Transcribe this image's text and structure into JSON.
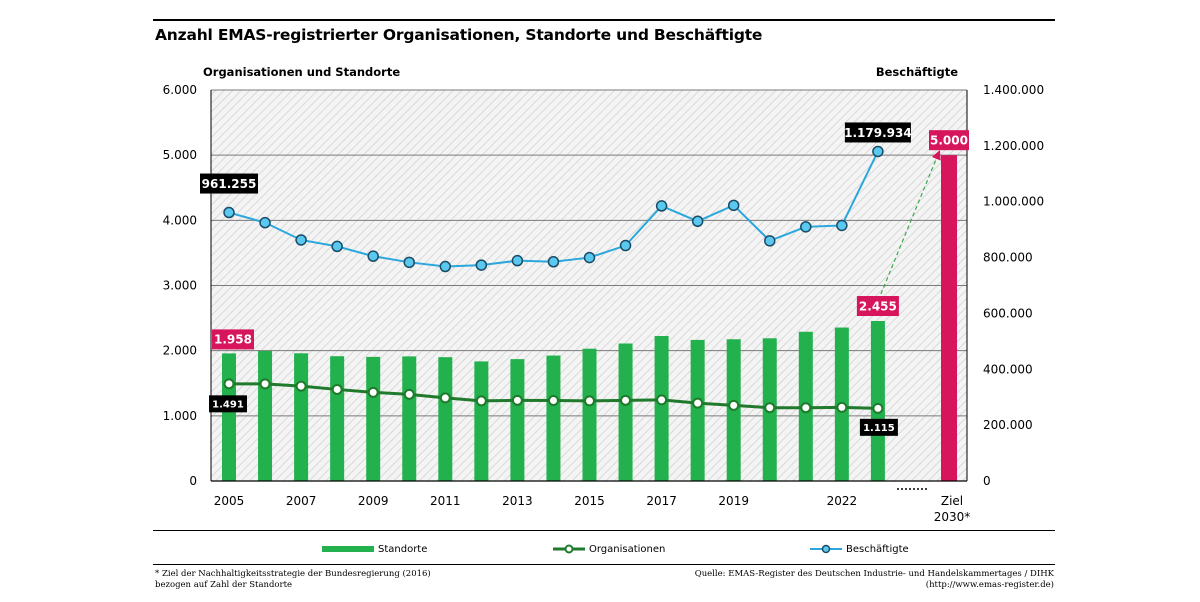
{
  "title": "Anzahl EMAS-registrierter Organisationen, Standorte und Beschäftigte",
  "colors": {
    "standorte": "#22b14c",
    "organisationen": "#1f7a2c",
    "beschaeftigte": "#2aa7dc",
    "marker_fill": "#5bc8f0",
    "highlight": "#d6155c",
    "label_dark": "#000000"
  },
  "chart_data": {
    "type": "bar",
    "title": "Anzahl EMAS-registrierter Organisationen, Standorte und Beschäftigte",
    "ylabel_left": "Organisationen und Standorte",
    "ylabel_right": "Beschäftigte",
    "ylim_left": [
      0,
      6000
    ],
    "ylim_right": [
      0,
      1400000
    ],
    "yticks_left": [
      "0",
      "1.000",
      "2.000",
      "3.000",
      "4.000",
      "5.000",
      "6.000"
    ],
    "yticks_right": [
      "0",
      "200.000",
      "400.000",
      "600.000",
      "800.000",
      "1.000.000",
      "1.200.000",
      "1.400.000"
    ],
    "years": [
      2005,
      2006,
      2007,
      2008,
      2009,
      2010,
      2011,
      2012,
      2013,
      2014,
      2015,
      2016,
      2017,
      2018,
      2019,
      2020,
      2021,
      2022,
      2023
    ],
    "xtick_labels": [
      "2005",
      "2007",
      "2009",
      "2011",
      "2013",
      "2015",
      "2017",
      "2019",
      "2022"
    ],
    "xtick_years": [
      2005,
      2007,
      2009,
      2011,
      2013,
      2015,
      2017,
      2019,
      2022
    ],
    "series": [
      {
        "name": "Standorte",
        "type": "bar",
        "axis": "left",
        "values": [
          1958,
          1995,
          1960,
          1915,
          1905,
          1912,
          1900,
          1835,
          1870,
          1925,
          2030,
          2110,
          2225,
          2165,
          2175,
          2190,
          2290,
          2355,
          2455
        ]
      },
      {
        "name": "Organisationen",
        "type": "line",
        "axis": "left",
        "values": [
          1491,
          1490,
          1455,
          1405,
          1360,
          1330,
          1275,
          1230,
          1238,
          1235,
          1230,
          1238,
          1245,
          1195,
          1160,
          1125,
          1125,
          1130,
          1115
        ]
      },
      {
        "name": "Beschäftigte",
        "type": "line",
        "axis": "right",
        "values": [
          961255,
          925000,
          863000,
          840000,
          805000,
          783000,
          768000,
          773000,
          789000,
          785000,
          800000,
          843000,
          985000,
          930000,
          987000,
          860000,
          910000,
          915000,
          1179934
        ]
      }
    ],
    "target": {
      "label": "Ziel 2030*",
      "label_line1": "Ziel",
      "label_line2": "2030*",
      "value": 5000
    },
    "annotations": {
      "beschaeftigte_first": "961.255",
      "beschaeftigte_last": "1.179.934",
      "standorte_first": "1.958",
      "standorte_last": "2.455",
      "organisationen_first": "1.491",
      "organisationen_last": "1.115",
      "target": "5.000"
    }
  },
  "axis_heads": {
    "left": "Organisationen und Standorte",
    "right": "Beschäftigte"
  },
  "legend": {
    "standorte": "Standorte",
    "organisationen": "Organisationen",
    "beschaeftigte": "Beschäftigte"
  },
  "footnote": {
    "line1": "* Ziel der Nachhaltigkeitsstrategie der Bundesregierung (2016)",
    "line2": "bezogen auf Zahl der Standorte"
  },
  "source": {
    "line1": "Quelle: EMAS-Register des Deutschen Industrie- und Handelskammertages / DIHK",
    "line2": "(http://www.emas-register.de)"
  }
}
